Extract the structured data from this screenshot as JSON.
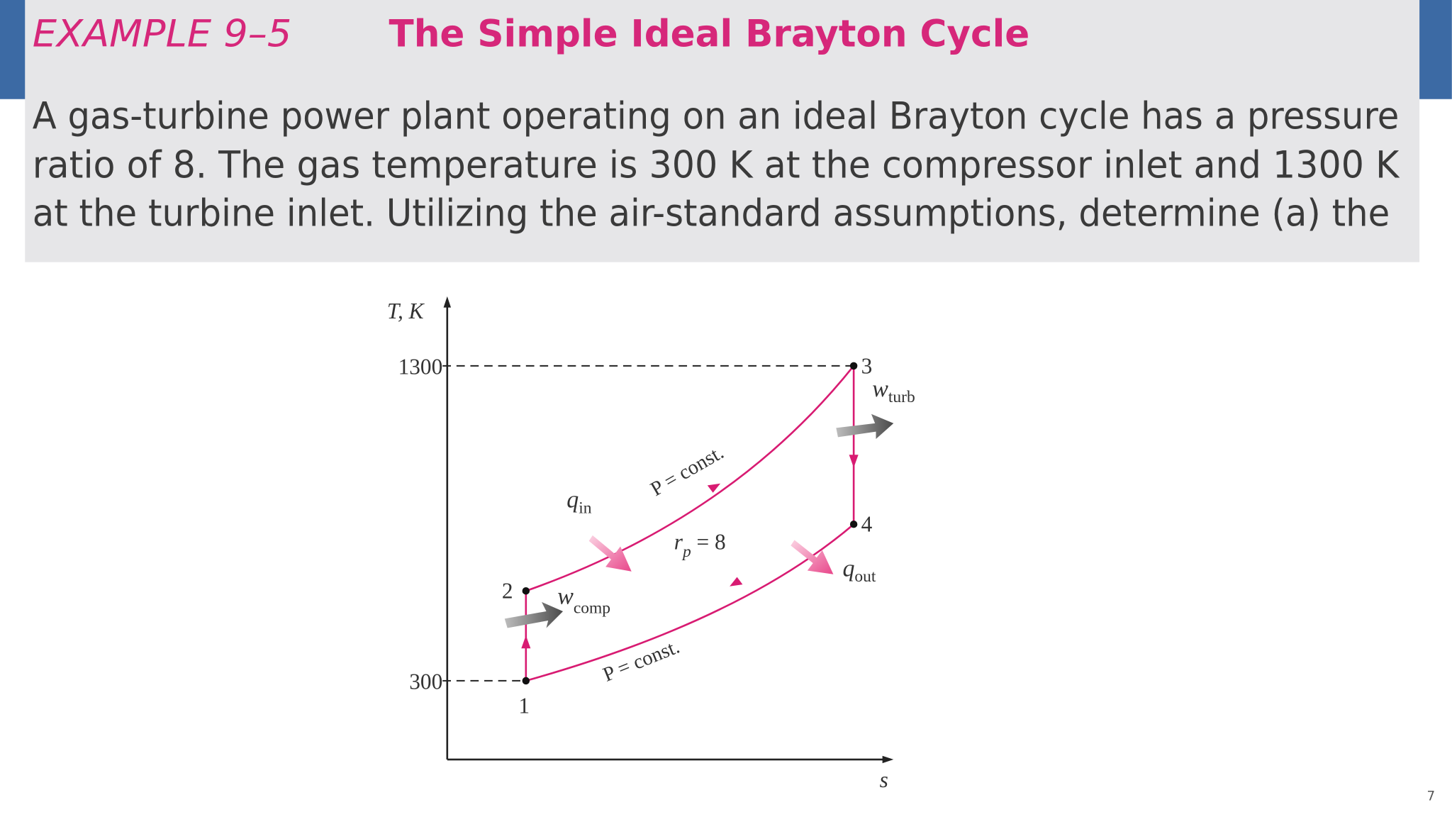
{
  "header": {
    "label": "EXAMPLE 9–5",
    "title": "The Simple Ideal Brayton Cycle"
  },
  "body": {
    "lines": [
      "A gas-turbine power plant operating on an ideal Brayton cycle has a pressure",
      "ratio of 8. The gas temperature is 300 K at the compressor inlet and 1300 K",
      "at the turbine inlet. Utilizing the air-standard assumptions, determine (a) the"
    ]
  },
  "diagram": {
    "y_axis_label": "T, K",
    "x_axis_label": "s",
    "y_ticks": [
      "1300",
      "300"
    ],
    "points": [
      "1",
      "2",
      "3",
      "4"
    ],
    "q_in": {
      "base": "q",
      "sub": "in"
    },
    "q_out": {
      "base": "q",
      "sub": "out"
    },
    "w_comp": {
      "base": "w",
      "sub": "comp"
    },
    "w_turb": {
      "base": "w",
      "sub": "turb"
    },
    "upper_process": "P = const.",
    "lower_process": "P = const.",
    "ratio": {
      "base": "r",
      "sub": "p",
      "rest": " = 8"
    }
  },
  "footer": {
    "page_number": "7"
  }
}
